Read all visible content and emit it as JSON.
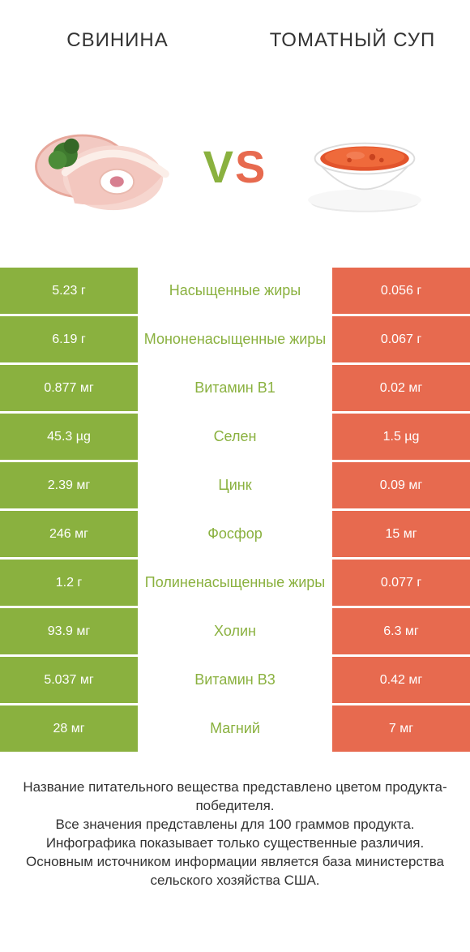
{
  "colors": {
    "green": "#8ab13f",
    "orange": "#e76a4f",
    "white": "#ffffff",
    "text": "#333333"
  },
  "header": {
    "left": "Свинина",
    "right": "Томатный суп"
  },
  "vs": {
    "v": "V",
    "s": "S"
  },
  "rows": [
    {
      "left": "5.23 г",
      "mid": "Насыщенные жиры",
      "right": "0.056 г",
      "winner": "left"
    },
    {
      "left": "6.19 г",
      "mid": "Мононенасыщенные жиры",
      "right": "0.067 г",
      "winner": "left"
    },
    {
      "left": "0.877 мг",
      "mid": "Витамин B1",
      "right": "0.02 мг",
      "winner": "left"
    },
    {
      "left": "45.3 µg",
      "mid": "Селен",
      "right": "1.5 µg",
      "winner": "left"
    },
    {
      "left": "2.39 мг",
      "mid": "Цинк",
      "right": "0.09 мг",
      "winner": "left"
    },
    {
      "left": "246 мг",
      "mid": "Фосфор",
      "right": "15 мг",
      "winner": "left"
    },
    {
      "left": "1.2 г",
      "mid": "Полиненасыщенные жиры",
      "right": "0.077 г",
      "winner": "left"
    },
    {
      "left": "93.9 мг",
      "mid": "Холин",
      "right": "6.3 мг",
      "winner": "left"
    },
    {
      "left": "5.037 мг",
      "mid": "Витамин B3",
      "right": "0.42 мг",
      "winner": "left"
    },
    {
      "left": "28 мг",
      "mid": "Магний",
      "right": "7 мг",
      "winner": "left"
    }
  ],
  "footer": {
    "l1": "Название питательного вещества представлено цветом продукта-победителя.",
    "l2": "Все значения представлены для 100 граммов продукта.",
    "l3": "Инфографика показывает только существенные различия.",
    "l4": "Основным источником информации является база министерства сельского хозяйства США."
  }
}
